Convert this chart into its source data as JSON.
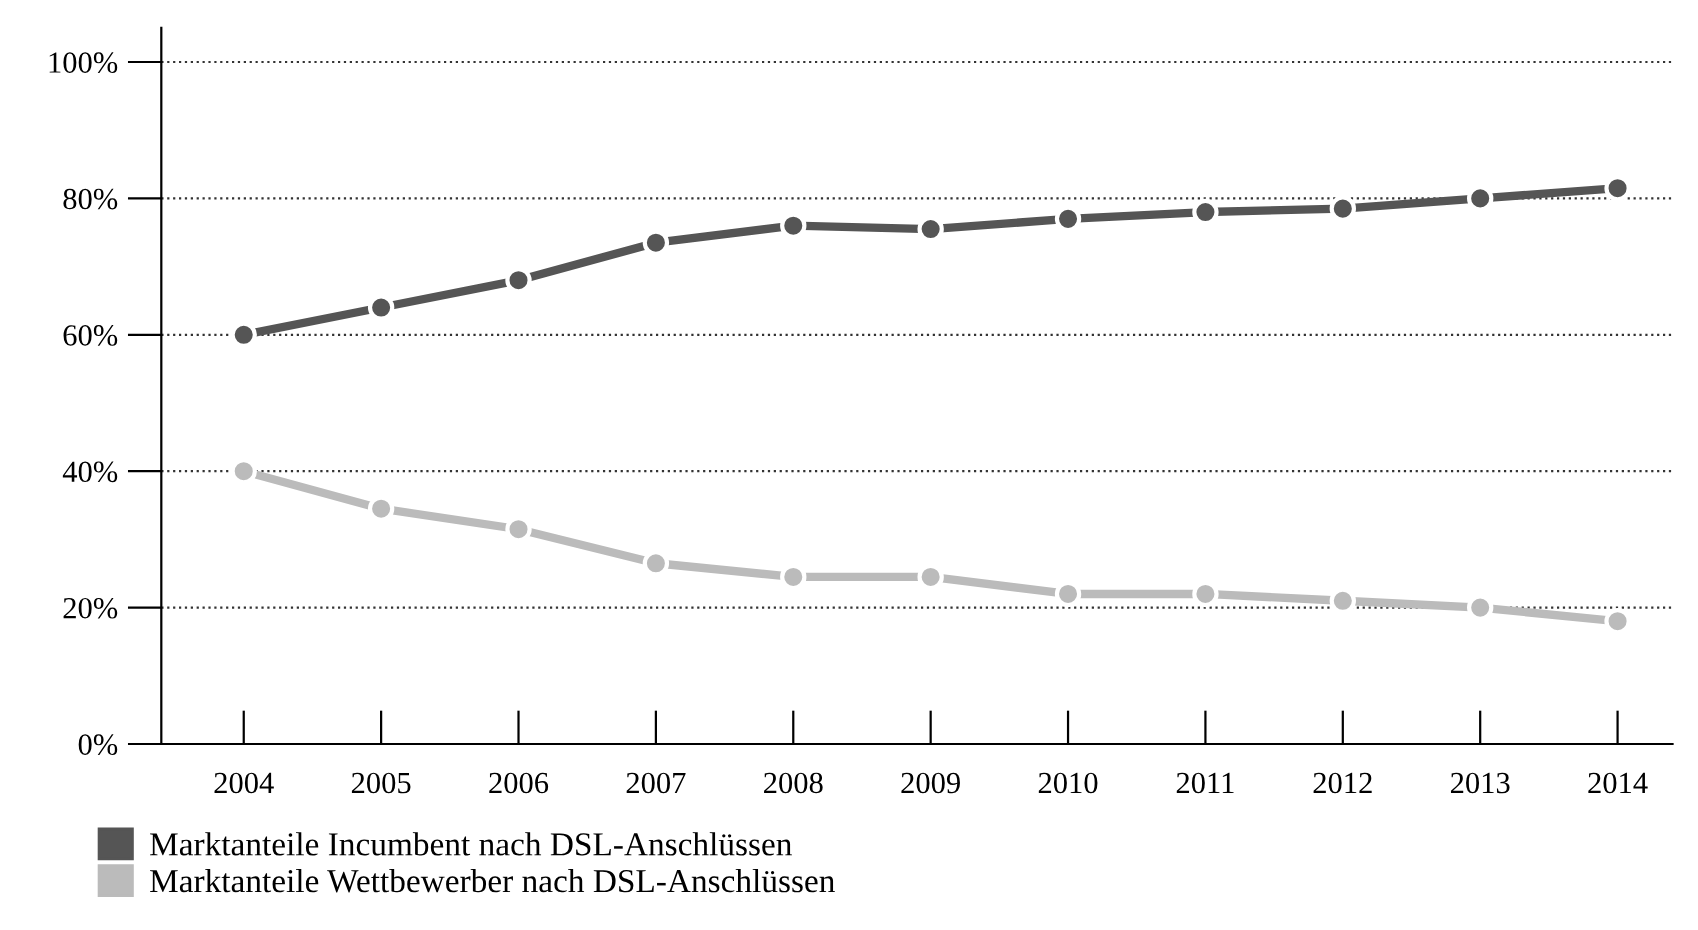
{
  "chart_data": {
    "type": "line",
    "categories": [
      "2004",
      "2005",
      "2006",
      "2007",
      "2008",
      "2009",
      "2010",
      "2011",
      "2012",
      "2013",
      "2014"
    ],
    "series": [
      {
        "name": "Marktanteile Incumbent nach DSL-Anschlüssen",
        "color": "#555555",
        "values": [
          60,
          64,
          68,
          73.5,
          76,
          75.5,
          77,
          78,
          78.5,
          80,
          81.5
        ]
      },
      {
        "name": "Marktanteile Wettbewerber nach DSL-Anschlüssen",
        "color": "#bbbbbb",
        "values": [
          40,
          34.5,
          31.5,
          26.5,
          24.5,
          24.5,
          22,
          22,
          21,
          20,
          18
        ]
      }
    ],
    "ylim": [
      0,
      105
    ],
    "yticks": [
      {
        "value": 0,
        "label": "0%"
      },
      {
        "value": 20,
        "label": "20%"
      },
      {
        "value": 40,
        "label": "40%"
      },
      {
        "value": 60,
        "label": "60%"
      },
      {
        "value": 80,
        "label": "80%"
      },
      {
        "value": 100,
        "label": "100%"
      }
    ],
    "grid": "y",
    "legend": "bottom left",
    "marker": "circle",
    "line_style": "solid"
  }
}
